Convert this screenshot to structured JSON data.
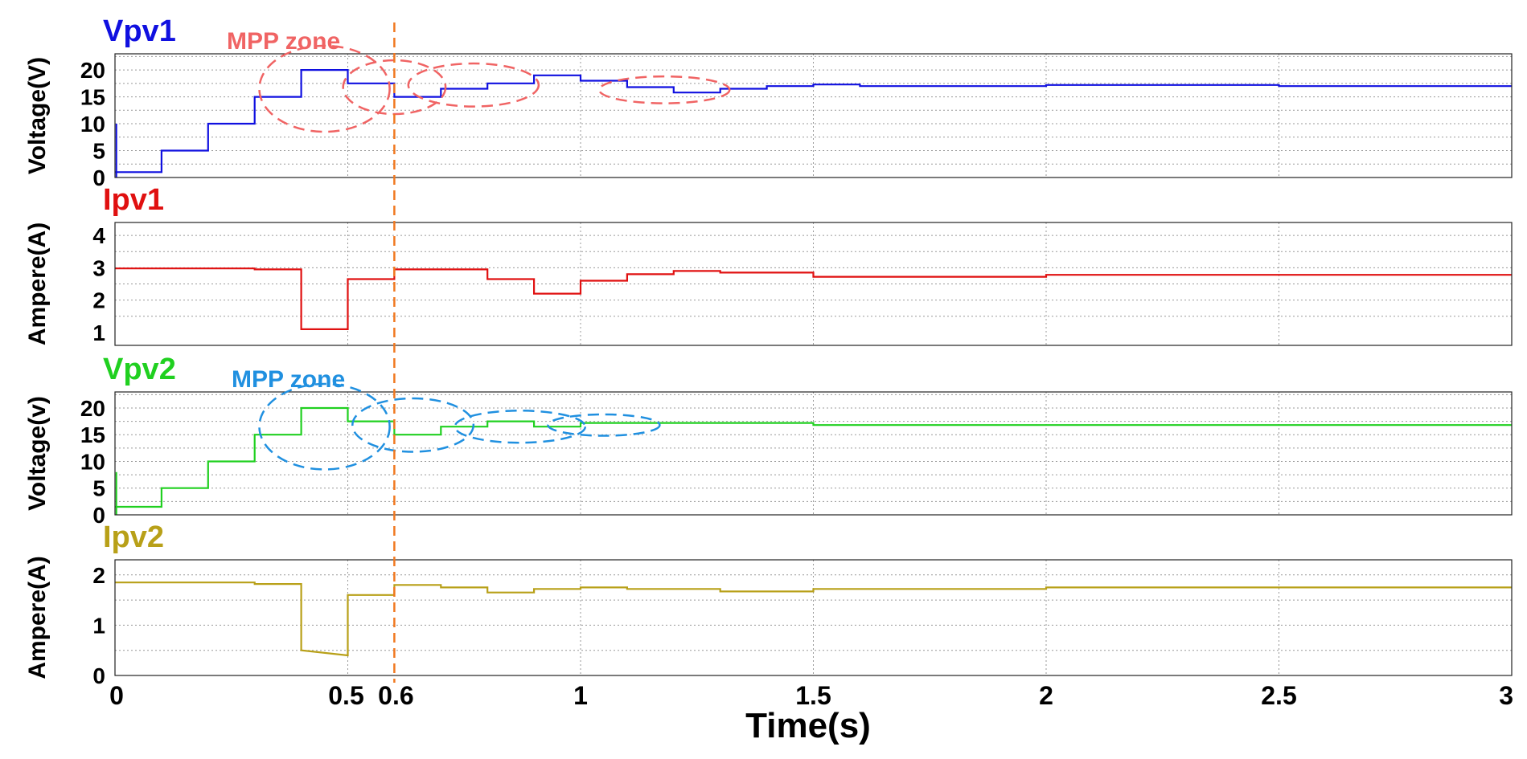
{
  "chart_data": {
    "type": "line",
    "xlabel": "Time(s)",
    "xlim": [
      0,
      3
    ],
    "x_ticks": [
      "0",
      "0.5",
      "1",
      "1.5",
      "2",
      "2.5",
      "3"
    ],
    "marker_line": {
      "x": 0.6,
      "label": "0.6",
      "color": "#f07820"
    },
    "panels": [
      {
        "title": "Vpv1",
        "ylabel": "Voltage(V)",
        "color": "#1010e0",
        "ylim": [
          0,
          23
        ],
        "yticks": [
          "0",
          "5",
          "10",
          "15",
          "20"
        ],
        "yvals": [
          0,
          5,
          10,
          15,
          20
        ],
        "annotation": "MPP zone",
        "annotation_color": "#f06464",
        "series": {
          "name": "Vpv1",
          "x": [
            0,
            0.1,
            0.1,
            0.2,
            0.2,
            0.3,
            0.3,
            0.4,
            0.4,
            0.5,
            0.5,
            0.6,
            0.6,
            0.7,
            0.7,
            0.8,
            0.8,
            0.9,
            0.9,
            1.0,
            1.0,
            1.1,
            1.1,
            1.2,
            1.2,
            1.3,
            1.3,
            1.4,
            1.4,
            1.5,
            1.5,
            1.6,
            1.6,
            2.0,
            2.0,
            2.5,
            2.5,
            3.0
          ],
          "y": [
            1,
            1,
            5,
            5,
            10,
            10,
            15,
            15,
            20,
            20,
            17.5,
            17.5,
            15,
            15,
            16.5,
            16.5,
            17.5,
            17.5,
            19,
            19,
            18,
            18,
            16.8,
            16.8,
            15.8,
            15.8,
            16.5,
            16.5,
            17,
            17,
            17.3,
            17.3,
            17,
            17,
            17.2,
            17.2,
            17,
            17
          ]
        }
      },
      {
        "title": "Ipv1",
        "ylabel": "Ampere(A)",
        "color": "#e01010",
        "ylim": [
          0.6,
          4.4
        ],
        "yticks": [
          "1",
          "2",
          "3",
          "4"
        ],
        "yvals": [
          1,
          2,
          3,
          4
        ],
        "series": {
          "name": "Ipv1",
          "x": [
            0,
            0.3,
            0.3,
            0.4,
            0.4,
            0.5,
            0.5,
            0.6,
            0.6,
            0.8,
            0.8,
            0.9,
            0.9,
            1.0,
            1.0,
            1.1,
            1.1,
            1.2,
            1.2,
            1.3,
            1.3,
            1.5,
            1.5,
            2.0,
            2.0,
            3.0
          ],
          "y": [
            2.98,
            2.98,
            2.95,
            2.95,
            1.1,
            1.1,
            2.65,
            2.65,
            2.95,
            2.95,
            2.65,
            2.65,
            2.2,
            2.2,
            2.6,
            2.6,
            2.8,
            2.8,
            2.9,
            2.9,
            2.85,
            2.85,
            2.72,
            2.72,
            2.78,
            2.78
          ]
        }
      },
      {
        "title": "Vpv2",
        "ylabel": "Voltage(v)",
        "color": "#20d020",
        "ylim": [
          0,
          23
        ],
        "yticks": [
          "0",
          "5",
          "10",
          "15",
          "20"
        ],
        "yvals": [
          0,
          5,
          10,
          15,
          20
        ],
        "annotation": "MPP zone",
        "annotation_color": "#2090e0",
        "series": {
          "name": "Vpv2",
          "x": [
            0,
            0.1,
            0.1,
            0.2,
            0.2,
            0.3,
            0.3,
            0.4,
            0.4,
            0.5,
            0.5,
            0.6,
            0.6,
            0.7,
            0.7,
            0.8,
            0.8,
            0.9,
            0.9,
            1.0,
            1.0,
            1.5,
            1.5,
            3.0
          ],
          "y": [
            1.5,
            1.5,
            5,
            5,
            10,
            10,
            15,
            15,
            20,
            20,
            17.5,
            17.5,
            15,
            15,
            16.5,
            16.5,
            17.5,
            17.5,
            16.5,
            16.5,
            17.2,
            17.2,
            16.8,
            16.8
          ]
        }
      },
      {
        "title": "Ipv2",
        "ylabel": "Ampere(A)",
        "color": "#b8a018",
        "ylim": [
          0,
          2.3
        ],
        "yticks": [
          "0",
          "1",
          "2"
        ],
        "yvals": [
          0,
          1,
          2
        ],
        "series": {
          "name": "Ipv2",
          "x": [
            0,
            0.3,
            0.3,
            0.4,
            0.4,
            0.5,
            0.5,
            0.6,
            0.6,
            0.7,
            0.7,
            0.8,
            0.8,
            0.9,
            0.9,
            1.0,
            1.0,
            1.1,
            1.1,
            1.3,
            1.3,
            1.5,
            1.5,
            2.0,
            2.0,
            3.0
          ],
          "y": [
            1.85,
            1.85,
            1.82,
            1.82,
            0.5,
            0.4,
            1.6,
            1.6,
            1.8,
            1.8,
            1.75,
            1.75,
            1.65,
            1.65,
            1.72,
            1.72,
            1.75,
            1.75,
            1.72,
            1.72,
            1.67,
            1.67,
            1.72,
            1.72,
            1.75,
            1.75
          ]
        }
      }
    ]
  }
}
